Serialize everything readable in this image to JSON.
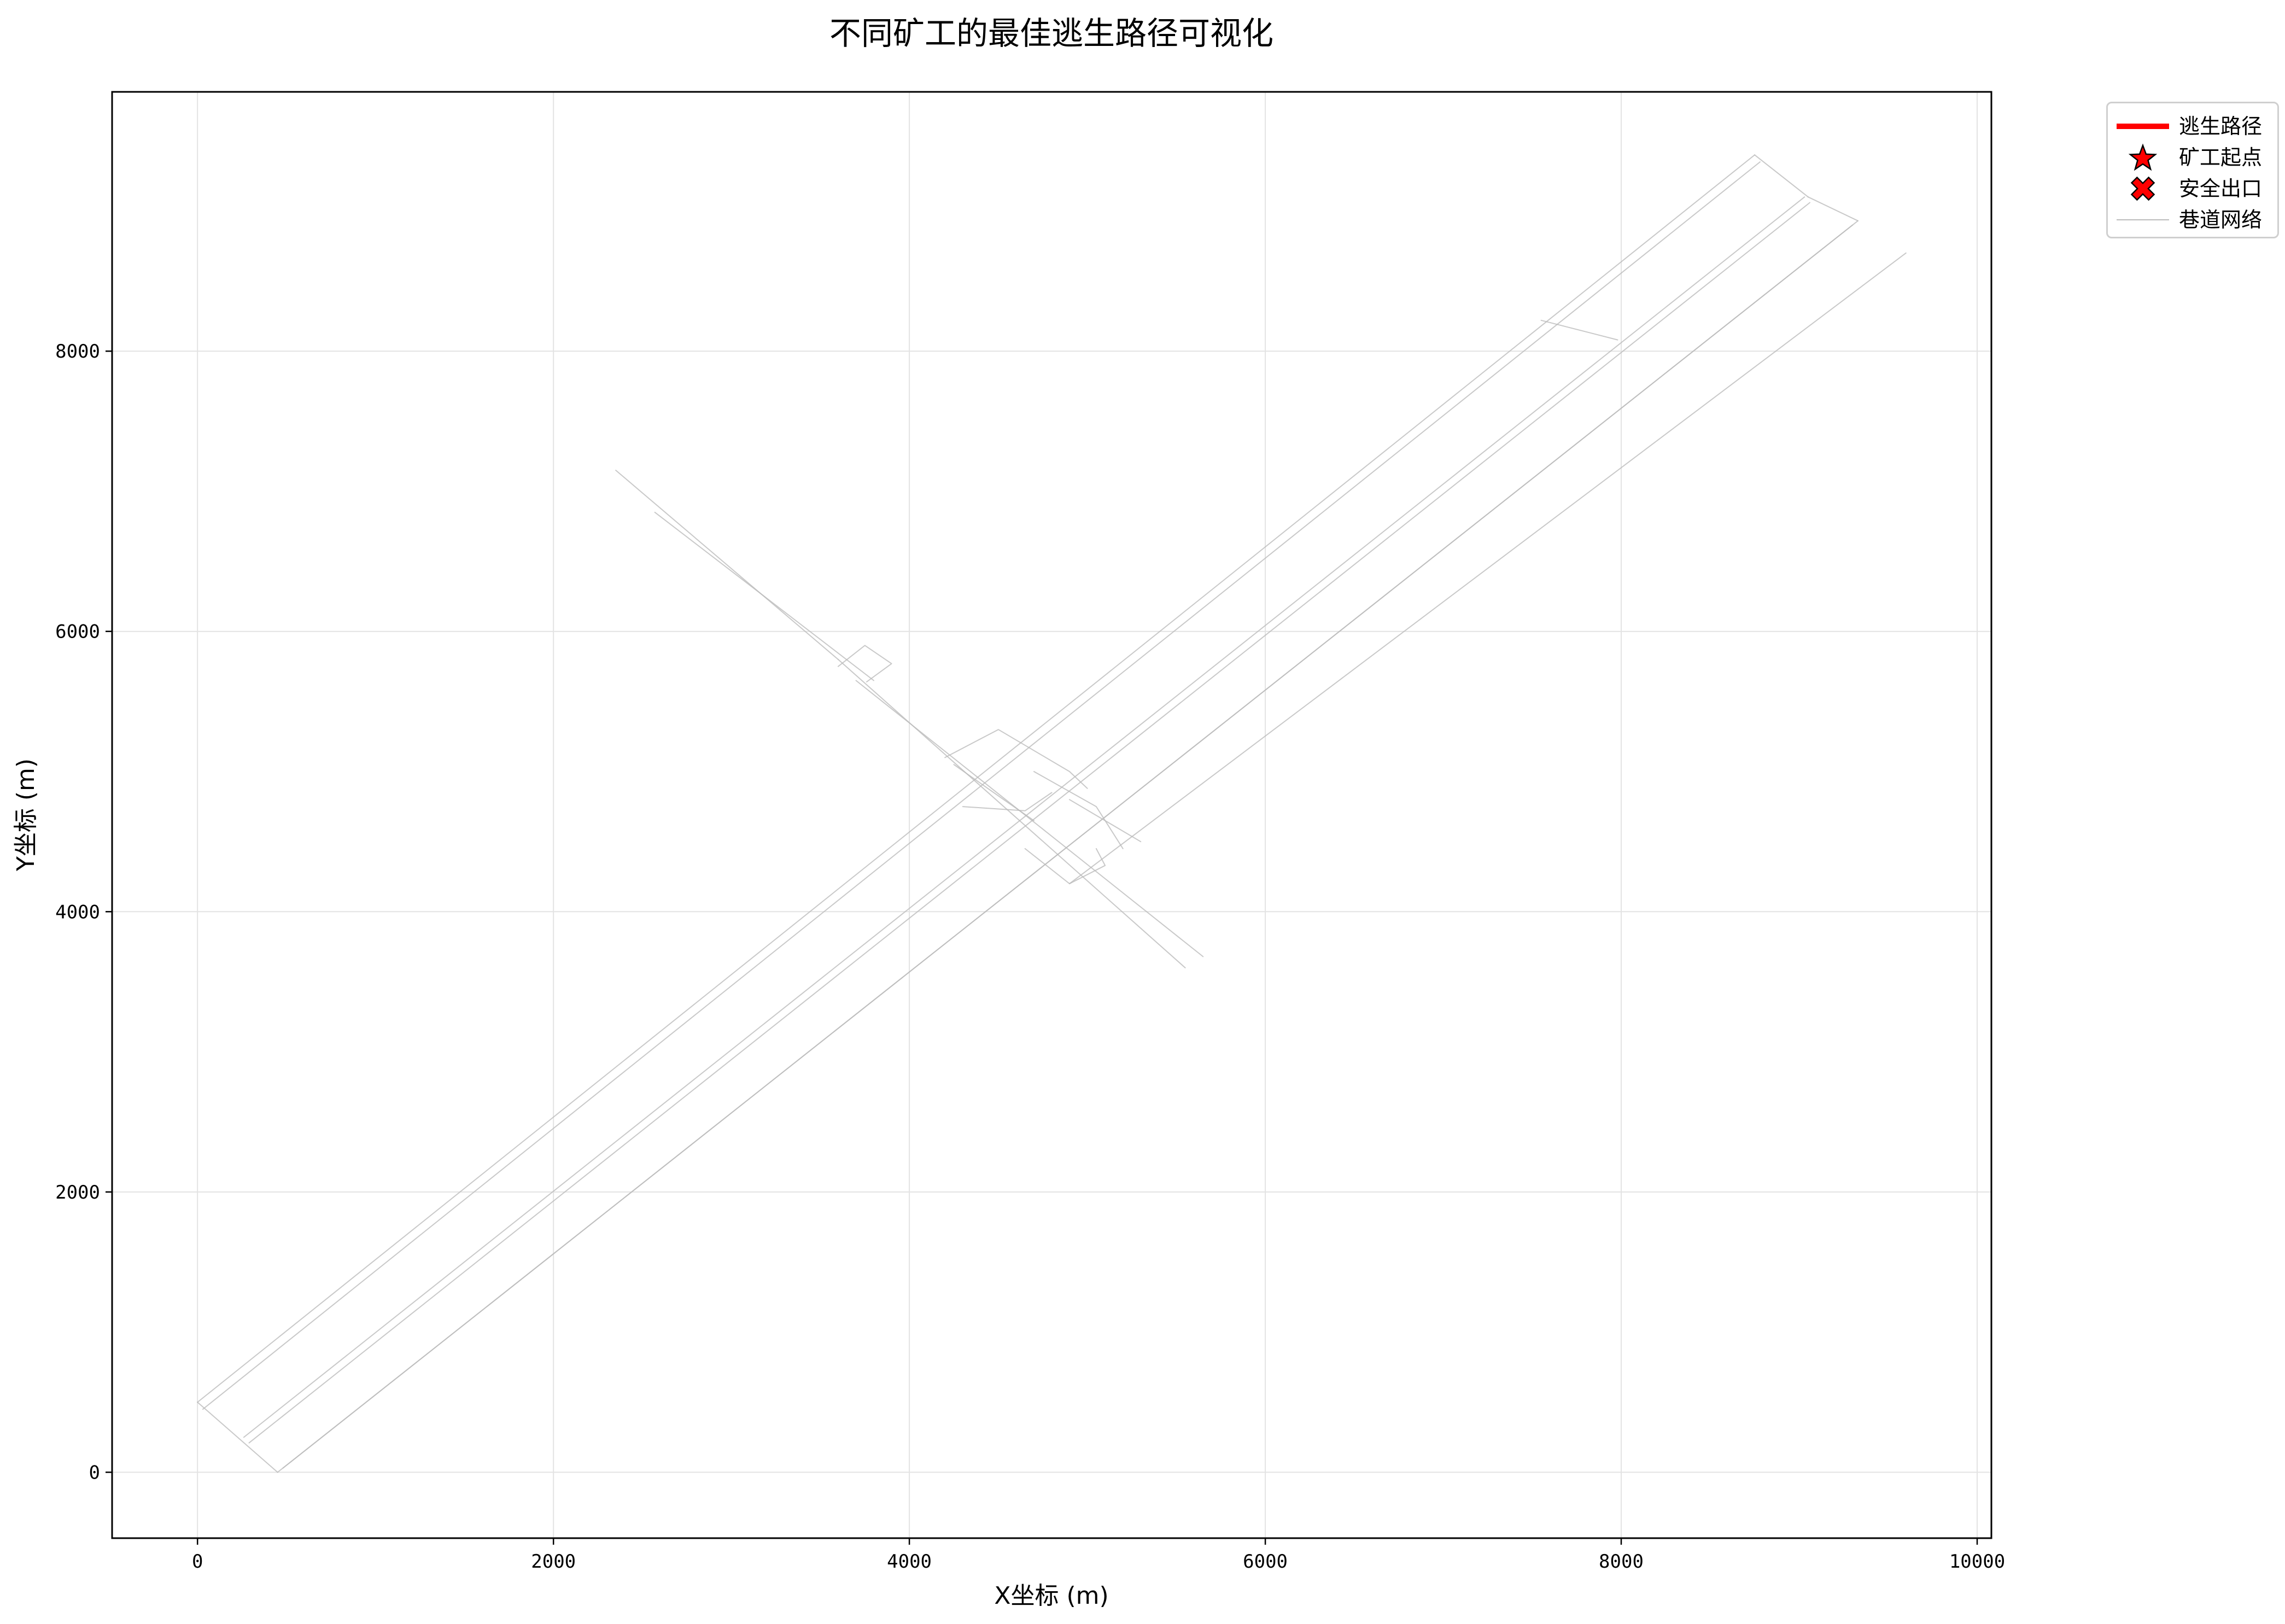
{
  "chart_data": {
    "type": "line",
    "title": "不同矿工的最佳逃生路径可视化",
    "xlabel": "X坐标 (m)",
    "ylabel": "Y坐标 (m)",
    "xlim": [
      -480,
      10080
    ],
    "ylim": [
      -470,
      9850
    ],
    "xticks": [
      0,
      2000,
      4000,
      6000,
      8000,
      10000
    ],
    "yticks": [
      0,
      2000,
      4000,
      6000,
      8000
    ],
    "grid": true,
    "legend_placement": "outside top-right",
    "legend": [
      {
        "label": "逃生路径",
        "kind": "line",
        "color": "#ff0000"
      },
      {
        "label": "矿工起点",
        "kind": "star",
        "color": "#ff0000"
      },
      {
        "label": "安全出口",
        "kind": "x-marker",
        "color": "#ff0000"
      },
      {
        "label": "巷道网络",
        "kind": "thin-line",
        "color": "#bbbbbb"
      }
    ],
    "series": [
      {
        "name": "巷道网络",
        "color": "#bbbbbb",
        "segments": [
          [
            [
              0,
              500
            ],
            [
              8750,
              9400
            ]
          ],
          [
            [
              30,
              450
            ],
            [
              8780,
              9350
            ]
          ],
          [
            [
              0,
              500
            ],
            [
              450,
              0
            ]
          ],
          [
            [
              260,
              250
            ],
            [
              9030,
              9100
            ]
          ],
          [
            [
              290,
              210
            ],
            [
              9060,
              9060
            ]
          ],
          [
            [
              450,
              0
            ],
            [
              9300,
              8900
            ]
          ],
          [
            [
              480,
              30
            ],
            [
              9330,
              8930
            ]
          ],
          [
            [
              4900,
              4200
            ],
            [
              9600,
              8700
            ]
          ],
          [
            [
              8750,
              9400
            ],
            [
              9050,
              9100
            ]
          ],
          [
            [
              9050,
              9100
            ],
            [
              9330,
              8930
            ]
          ],
          [
            [
              7550,
              8220
            ],
            [
              7980,
              8080
            ]
          ],
          [
            [
              2350,
              7150
            ],
            [
              3600,
              5800
            ]
          ],
          [
            [
              2570,
              6850
            ],
            [
              3800,
              5650
            ]
          ],
          [
            [
              3600,
              5800
            ],
            [
              5550,
              3600
            ]
          ],
          [
            [
              3700,
              5650
            ],
            [
              5650,
              3680
            ]
          ],
          [
            [
              3600,
              5750
            ],
            [
              3750,
              5900
            ],
            [
              3900,
              5770
            ],
            [
              3760,
              5640
            ]
          ],
          [
            [
              4200,
              5100
            ],
            [
              4500,
              5300
            ],
            [
              4900,
              5000
            ],
            [
              5000,
              4880
            ]
          ],
          [
            [
              4250,
              5050
            ],
            [
              4530,
              4800
            ],
            [
              4700,
              4650
            ]
          ],
          [
            [
              4650,
              4450
            ],
            [
              4900,
              4200
            ],
            [
              5100,
              4330
            ],
            [
              5050,
              4450
            ]
          ],
          [
            [
              4700,
              5000
            ],
            [
              5050,
              4750
            ],
            [
              5200,
              4450
            ]
          ],
          [
            [
              4300,
              4750
            ],
            [
              4650,
              4720
            ],
            [
              4800,
              4850
            ]
          ],
          [
            [
              5300,
              4500
            ],
            [
              4900,
              4800
            ]
          ]
        ]
      },
      {
        "name": "逃生路径",
        "color": "#ff0000",
        "segments": []
      }
    ]
  }
}
